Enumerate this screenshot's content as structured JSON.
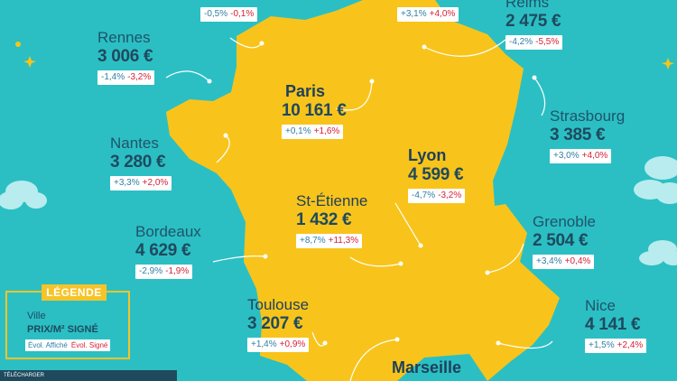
{
  "legend": {
    "title": "Légende",
    "ville": "Ville",
    "prix": "Prix/m² signé",
    "evol_affiche": "Évol. Affiché",
    "evol_signe": "Évol. Signé"
  },
  "footer": {
    "text": "TÉLÉCHARGER"
  },
  "colors": {
    "sea": "#2bbfc4",
    "france": "#f8c41b",
    "text_dark": "#1f4a5e",
    "evol_affiche": "#2f7fa5",
    "evol_signe": "#d81f36"
  },
  "cities": [
    {
      "name": "",
      "price": "",
      "affiche": "-0,5%",
      "signe": "-0,1%"
    },
    {
      "name": "",
      "price": "",
      "affiche": "+3,1%",
      "signe": "+4,0%"
    },
    {
      "name": "Reims",
      "price": "2 475 €",
      "affiche": "-4,2%",
      "signe": "-5,5%"
    },
    {
      "name": "Rennes",
      "price": "3 006 €",
      "affiche": "-1,4%",
      "signe": "-3,2%"
    },
    {
      "name": "Paris",
      "price": "10 161 €",
      "affiche": "+0,1%",
      "signe": "+1,6%"
    },
    {
      "name": "Strasbourg",
      "price": "3 385 €",
      "affiche": "+3,0%",
      "signe": "+4,0%"
    },
    {
      "name": "Nantes",
      "price": "3 280 €",
      "affiche": "+3,3%",
      "signe": "+2,0%"
    },
    {
      "name": "Lyon",
      "price": "4 599 €",
      "affiche": "-4,7%",
      "signe": "-3,2%"
    },
    {
      "name": "St-Étienne",
      "price": "1 432 €",
      "affiche": "+8,7%",
      "signe": "+11,3%"
    },
    {
      "name": "Grenoble",
      "price": "2 504 €",
      "affiche": "+3,4%",
      "signe": "+0,4%"
    },
    {
      "name": "Bordeaux",
      "price": "4 629 €",
      "affiche": "-2,9%",
      "signe": "-1,9%"
    },
    {
      "name": "Toulouse",
      "price": "3 207 €",
      "affiche": "+1,4%",
      "signe": "+0,9%"
    },
    {
      "name": "Nice",
      "price": "4 141 €",
      "affiche": "+1,5%",
      "signe": "+2,4%"
    },
    {
      "name": "Marseille",
      "price": "",
      "affiche": "",
      "signe": ""
    }
  ]
}
